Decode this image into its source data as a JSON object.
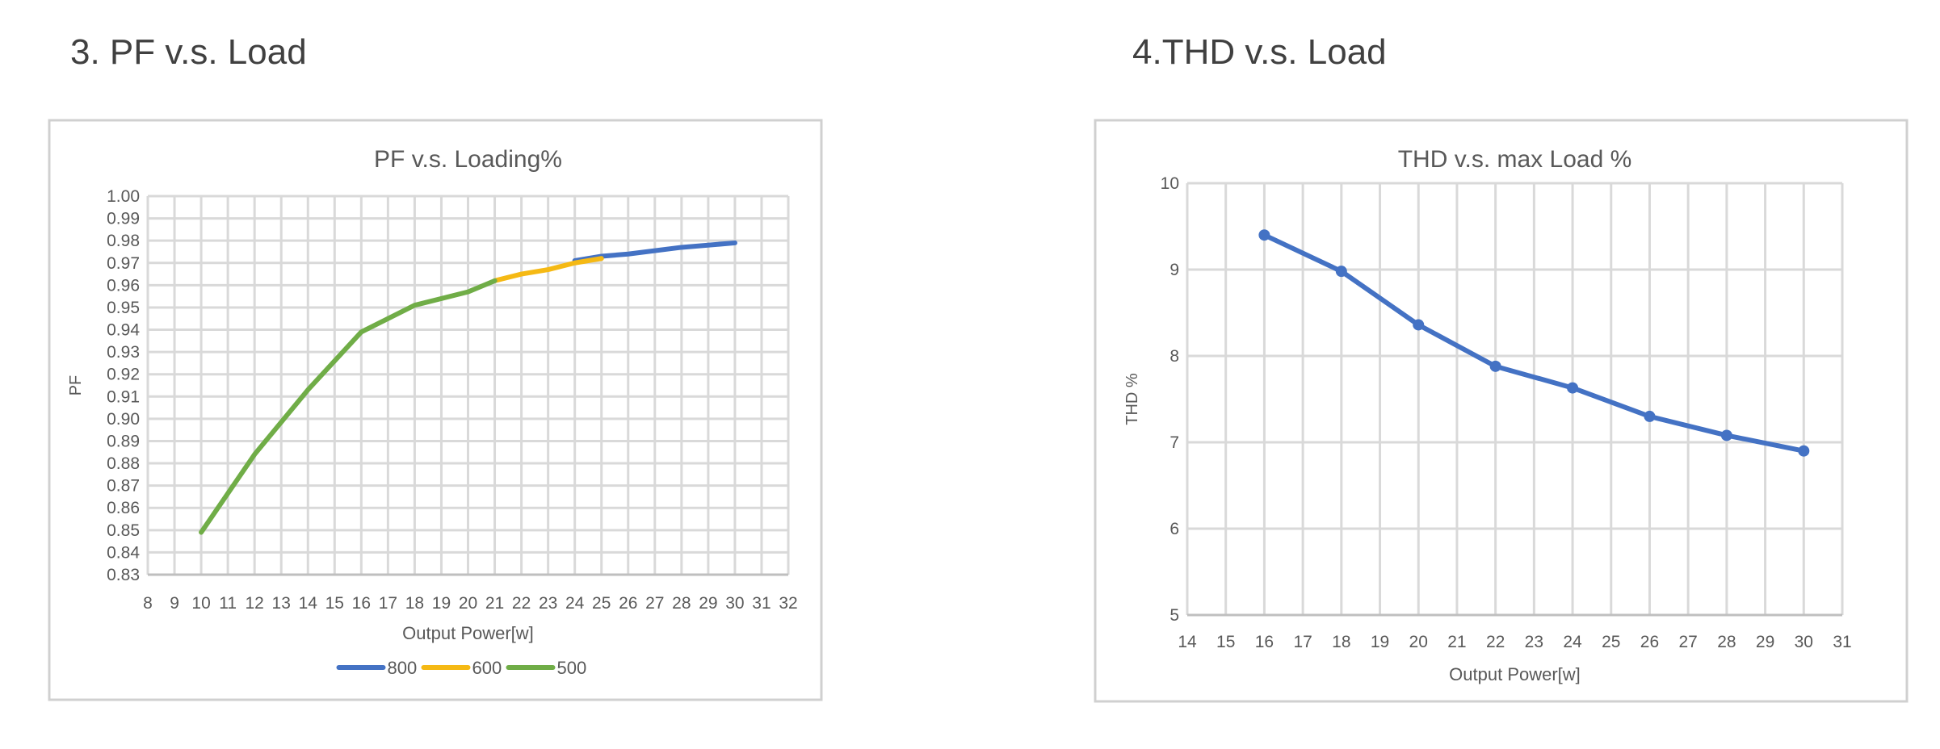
{
  "headings": {
    "left": "3. PF v.s. Load",
    "right": "4.THD v.s. Load"
  },
  "chart_data": [
    {
      "type": "line",
      "title": "PF v.s. Loading%",
      "xlabel": "Output Power[w]",
      "ylabel": "PF",
      "xlim": [
        8,
        32
      ],
      "ylim": [
        0.83,
        1.0
      ],
      "xstep": 1,
      "ystep": 0.01,
      "ydecimals": 2,
      "grid": true,
      "legend": "bottom",
      "markers": false,
      "series": [
        {
          "name": "800",
          "color": "#4472c4",
          "x": [
            24,
            25,
            26,
            28,
            30
          ],
          "y": [
            0.971,
            0.973,
            0.974,
            0.977,
            0.979
          ]
        },
        {
          "name": "600",
          "color": "#f5b914",
          "x": [
            21,
            22,
            23,
            24,
            25
          ],
          "y": [
            0.962,
            0.965,
            0.967,
            0.97,
            0.972
          ]
        },
        {
          "name": "500",
          "color": "#70ad47",
          "x": [
            10,
            12,
            14,
            16,
            18,
            20,
            21
          ],
          "y": [
            0.849,
            0.884,
            0.913,
            0.939,
            0.951,
            0.957,
            0.962
          ]
        }
      ]
    },
    {
      "type": "line",
      "title": "THD v.s. max Load %",
      "xlabel": "Output Power[w]",
      "ylabel": "THD %",
      "xlim": [
        14,
        31
      ],
      "ylim": [
        5,
        10
      ],
      "xstep": 1,
      "ystep": 1,
      "ydecimals": 0,
      "grid": true,
      "legend": "none",
      "markers": true,
      "series": [
        {
          "name": "THD",
          "color": "#4472c4",
          "x": [
            16,
            18,
            20,
            22,
            24,
            26,
            28,
            30
          ],
          "y": [
            9.4,
            8.98,
            8.36,
            7.88,
            7.63,
            7.3,
            7.08,
            6.9
          ]
        }
      ]
    }
  ]
}
